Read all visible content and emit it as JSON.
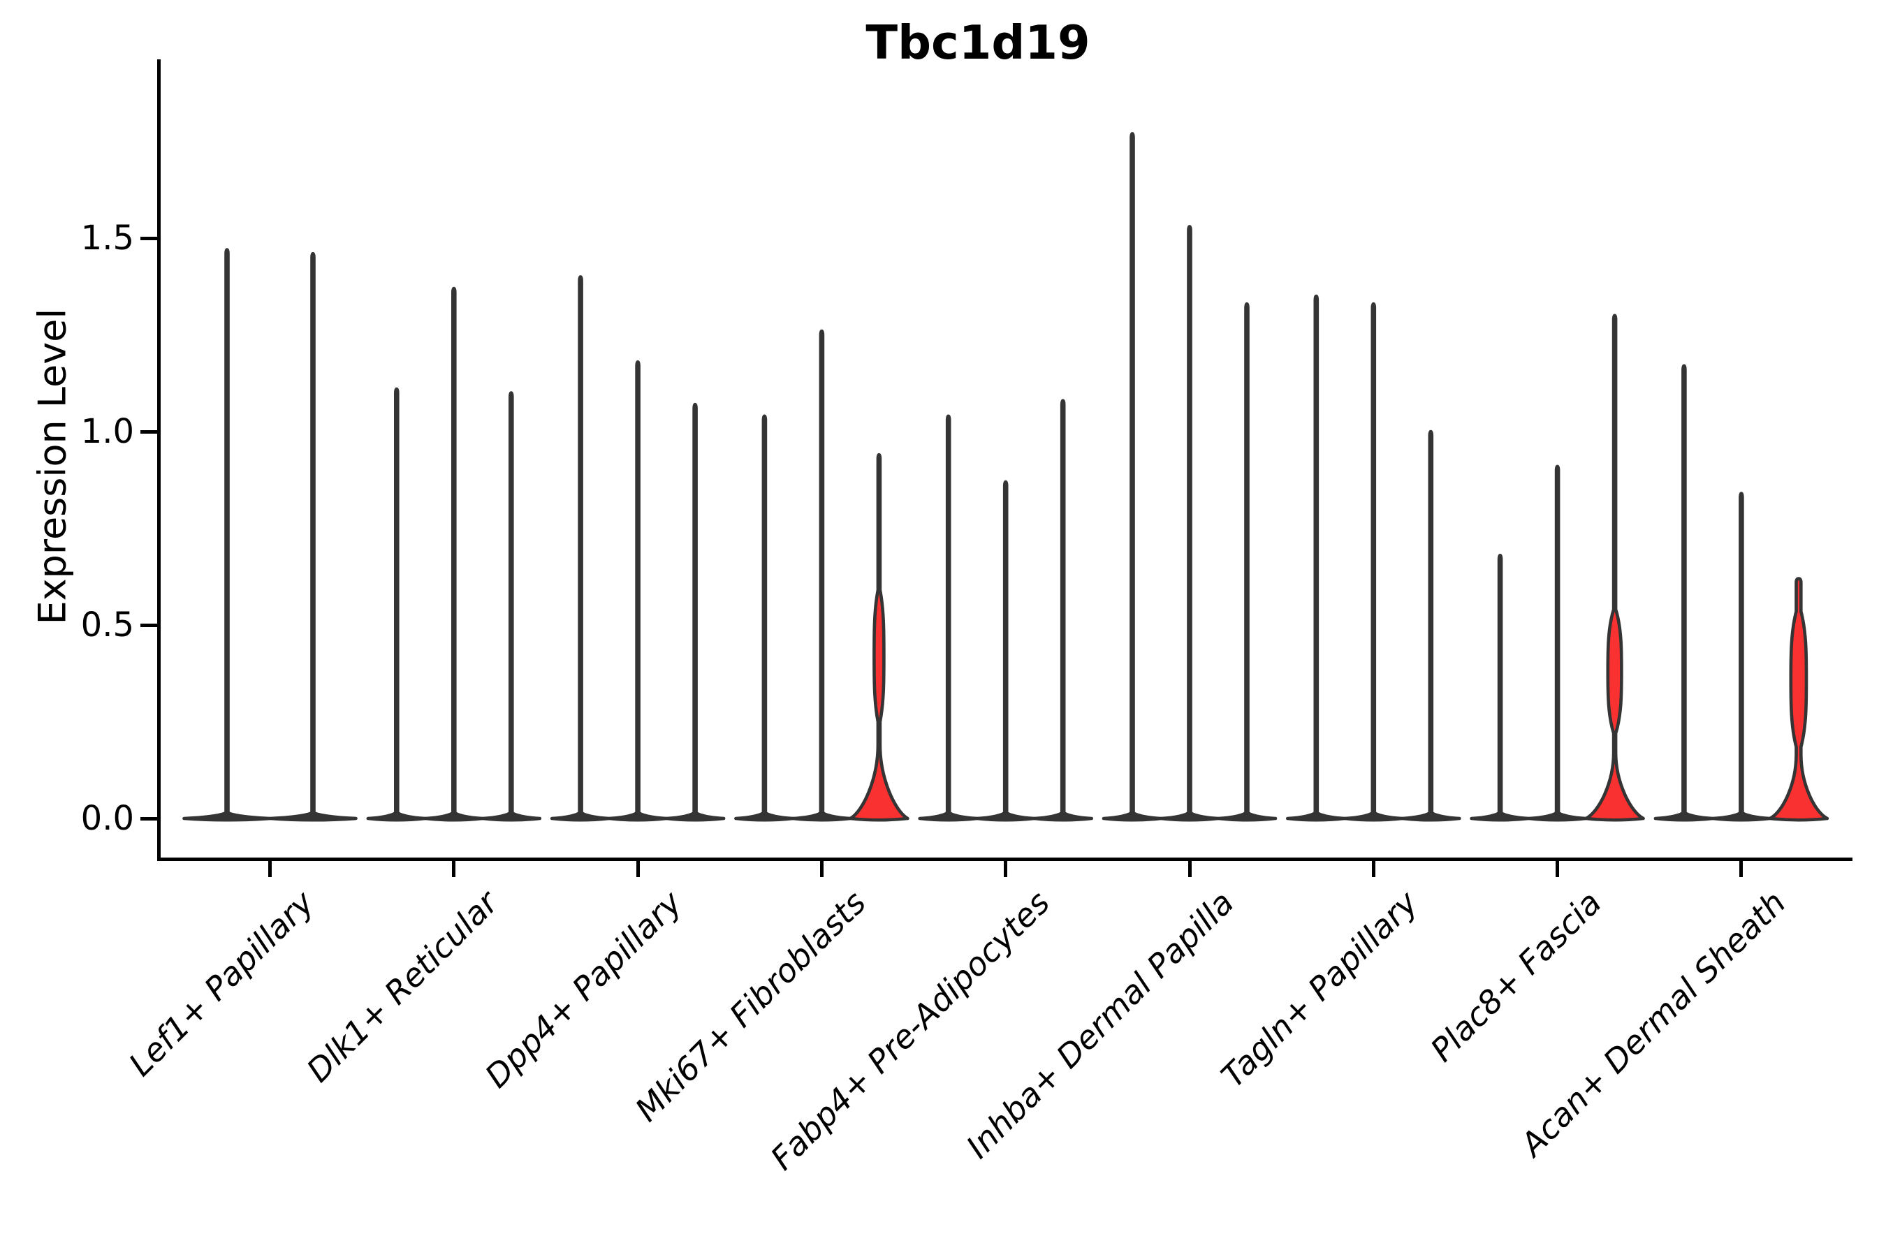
{
  "chart_data": {
    "type": "violin",
    "title": "Tbc1d19",
    "xlabel": "",
    "ylabel": "Expression Level",
    "yticks": [
      {
        "label": "1.5",
        "value": 1.5
      },
      {
        "label": "1.0",
        "value": 1.0
      },
      {
        "label": "0.5",
        "value": 0.5
      },
      {
        "label": "0.0",
        "value": 0.0
      }
    ],
    "ylim": [
      -0.1,
      1.96
    ],
    "grid": false,
    "legend": "none",
    "colors": {
      "outline": "#343434",
      "highlight_fill": "#FA3131",
      "axis": "#000000",
      "background": "#FFFFFF"
    },
    "categories": [
      "Lef1+ Papillary",
      "Dlk1+ Reticular",
      "Dpp4+ Papillary",
      "Mki67+ Fibroblasts",
      "Fabp4+ Pre-Adipocytes",
      "Inhba+ Dermal Papilla",
      "Tagln+ Papillary",
      "Plac8+ Fascia",
      "Acan+ Dermal Sheath"
    ],
    "groups": [
      {
        "category": "Lef1+ Papillary",
        "violins": [
          {
            "max": 1.47,
            "highlighted": false
          },
          {
            "max": 1.46,
            "highlighted": false
          }
        ]
      },
      {
        "category": "Dlk1+ Reticular",
        "violins": [
          {
            "max": 1.11,
            "highlighted": false
          },
          {
            "max": 1.37,
            "highlighted": false
          },
          {
            "max": 1.1,
            "highlighted": false
          }
        ]
      },
      {
        "category": "Dpp4+ Papillary",
        "violins": [
          {
            "max": 1.4,
            "highlighted": false
          },
          {
            "max": 1.18,
            "highlighted": false
          },
          {
            "max": 1.07,
            "highlighted": false
          }
        ]
      },
      {
        "category": "Mki67+ Fibroblasts",
        "violins": [
          {
            "max": 1.04,
            "highlighted": false
          },
          {
            "max": 1.26,
            "highlighted": false
          },
          {
            "max": 0.94,
            "highlighted": true,
            "bulge_center": 0.42,
            "bulge_half_extent": 0.17,
            "bulge_halfwidth_frac": 0.17,
            "base_top": 0.19,
            "thick_tip": false
          }
        ]
      },
      {
        "category": "Fabp4+ Pre-Adipocytes",
        "violins": [
          {
            "max": 1.04,
            "highlighted": false
          },
          {
            "max": 0.87,
            "highlighted": false
          },
          {
            "max": 1.08,
            "highlighted": false
          }
        ]
      },
      {
        "category": "Inhba+ Dermal Papilla",
        "violins": [
          {
            "max": 1.77,
            "highlighted": false
          },
          {
            "max": 1.53,
            "highlighted": false
          },
          {
            "max": 1.33,
            "highlighted": false
          }
        ]
      },
      {
        "category": "Tagln+ Papillary",
        "violins": [
          {
            "max": 1.35,
            "highlighted": false
          },
          {
            "max": 1.33,
            "highlighted": false
          },
          {
            "max": 1.0,
            "highlighted": false
          }
        ]
      },
      {
        "category": "Plac8+ Fascia",
        "violins": [
          {
            "max": 0.68,
            "highlighted": false
          },
          {
            "max": 0.91,
            "highlighted": false
          },
          {
            "max": 1.3,
            "highlighted": true,
            "bulge_center": 0.38,
            "bulge_half_extent": 0.16,
            "bulge_halfwidth_frac": 0.24,
            "base_top": 0.17,
            "thick_tip": false
          }
        ]
      },
      {
        "category": "Acan+ Dermal Sheath",
        "violins": [
          {
            "max": 1.17,
            "highlighted": false
          },
          {
            "max": 0.84,
            "highlighted": false
          },
          {
            "max": 0.62,
            "highlighted": true,
            "bulge_center": 0.36,
            "bulge_half_extent": 0.175,
            "bulge_halfwidth_frac": 0.27,
            "base_top": 0.165,
            "thick_tip": true
          }
        ]
      }
    ]
  }
}
